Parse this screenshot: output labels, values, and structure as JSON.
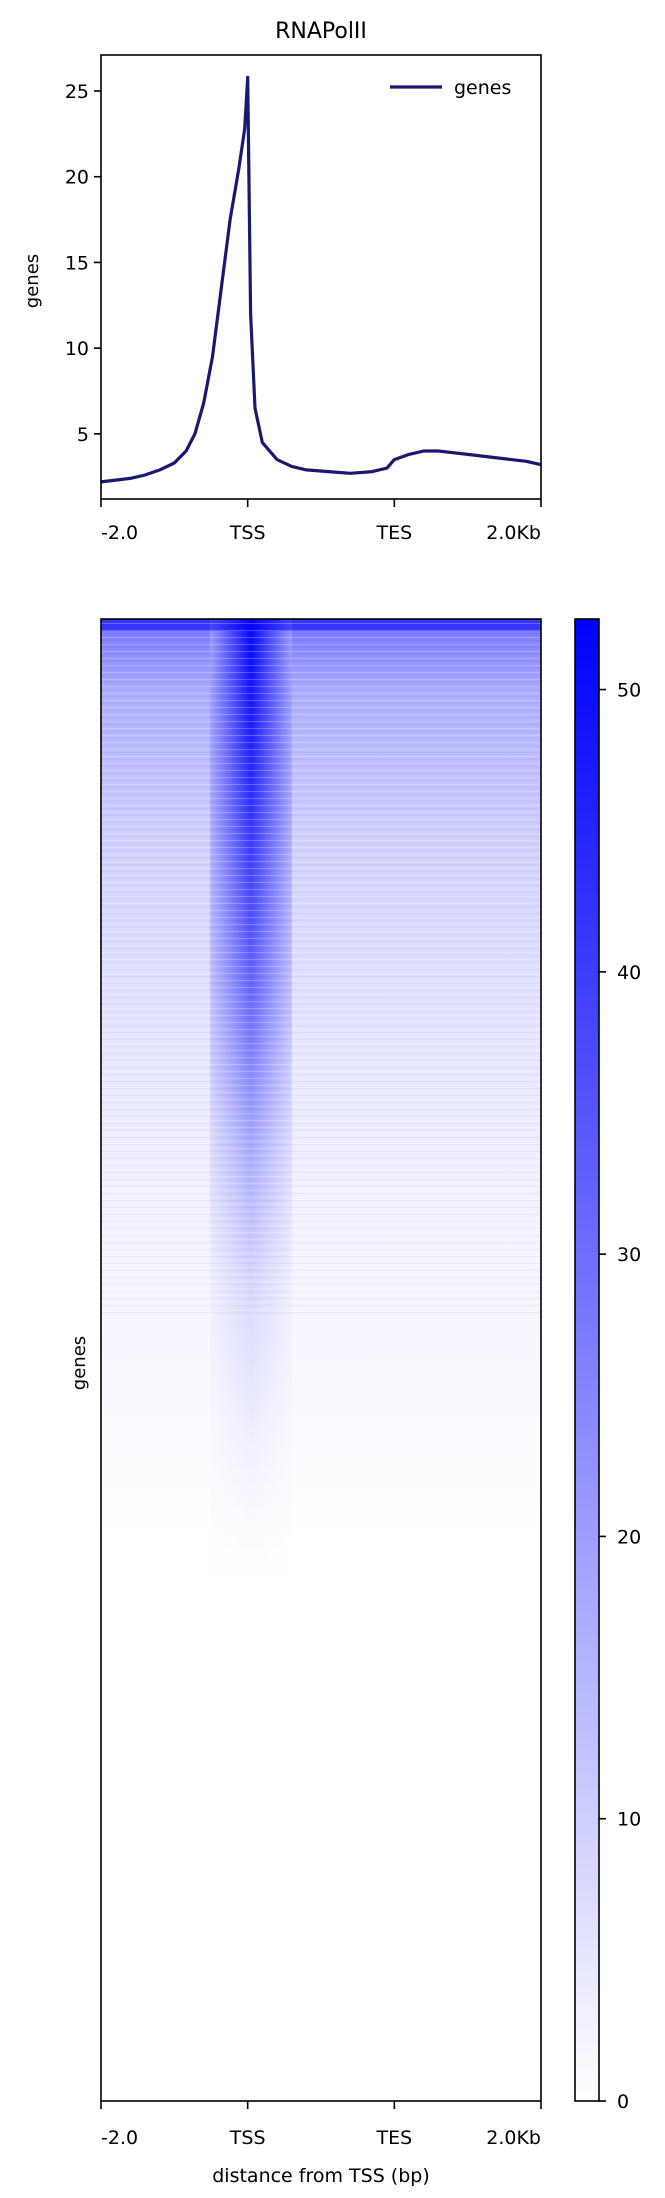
{
  "chart_data": [
    {
      "type": "line",
      "title": "RNAPolII",
      "ylabel": "genes",
      "xlabel": "",
      "x_tick_labels": [
        "-2.0",
        "TSS",
        "TES",
        "2.0Kb"
      ],
      "y_ticks": [
        5,
        10,
        15,
        20,
        25
      ],
      "ylim": [
        1.2,
        27.1
      ],
      "xlim": [
        0,
        3
      ],
      "legend": {
        "position": "top-right",
        "entries": [
          "genes"
        ]
      },
      "series": [
        {
          "name": "genes",
          "color": "#191970",
          "points": [
            [
              0.0,
              2.2
            ],
            [
              0.1,
              2.3
            ],
            [
              0.2,
              2.4
            ],
            [
              0.3,
              2.6
            ],
            [
              0.4,
              2.9
            ],
            [
              0.5,
              3.3
            ],
            [
              0.58,
              4.0
            ],
            [
              0.64,
              5.0
            ],
            [
              0.7,
              6.8
            ],
            [
              0.76,
              9.5
            ],
            [
              0.82,
              13.5
            ],
            [
              0.88,
              17.5
            ],
            [
              0.94,
              20.5
            ],
            [
              0.98,
              22.8
            ],
            [
              1.0,
              25.8
            ],
            [
              1.02,
              12.0
            ],
            [
              1.05,
              6.5
            ],
            [
              1.1,
              4.5
            ],
            [
              1.2,
              3.5
            ],
            [
              1.3,
              3.1
            ],
            [
              1.4,
              2.9
            ],
            [
              1.55,
              2.8
            ],
            [
              1.7,
              2.7
            ],
            [
              1.85,
              2.8
            ],
            [
              1.95,
              3.0
            ],
            [
              2.0,
              3.5
            ],
            [
              2.1,
              3.8
            ],
            [
              2.2,
              4.0
            ],
            [
              2.3,
              4.0
            ],
            [
              2.4,
              3.9
            ],
            [
              2.5,
              3.8
            ],
            [
              2.7,
              3.6
            ],
            [
              2.9,
              3.4
            ],
            [
              3.0,
              3.2
            ]
          ]
        }
      ]
    },
    {
      "type": "heatmap",
      "ylabel": "genes",
      "xlabel": "distance from TSS (bp)",
      "x_tick_labels": [
        "-2.0",
        "TSS",
        "TES",
        "2.0Kb"
      ],
      "colormap": {
        "low": "#ffffff",
        "high": "#0000ff"
      },
      "colorbar": {
        "ticks": [
          0,
          10,
          20,
          30,
          40,
          50
        ],
        "range": [
          0,
          52.5
        ]
      }
    }
  ]
}
